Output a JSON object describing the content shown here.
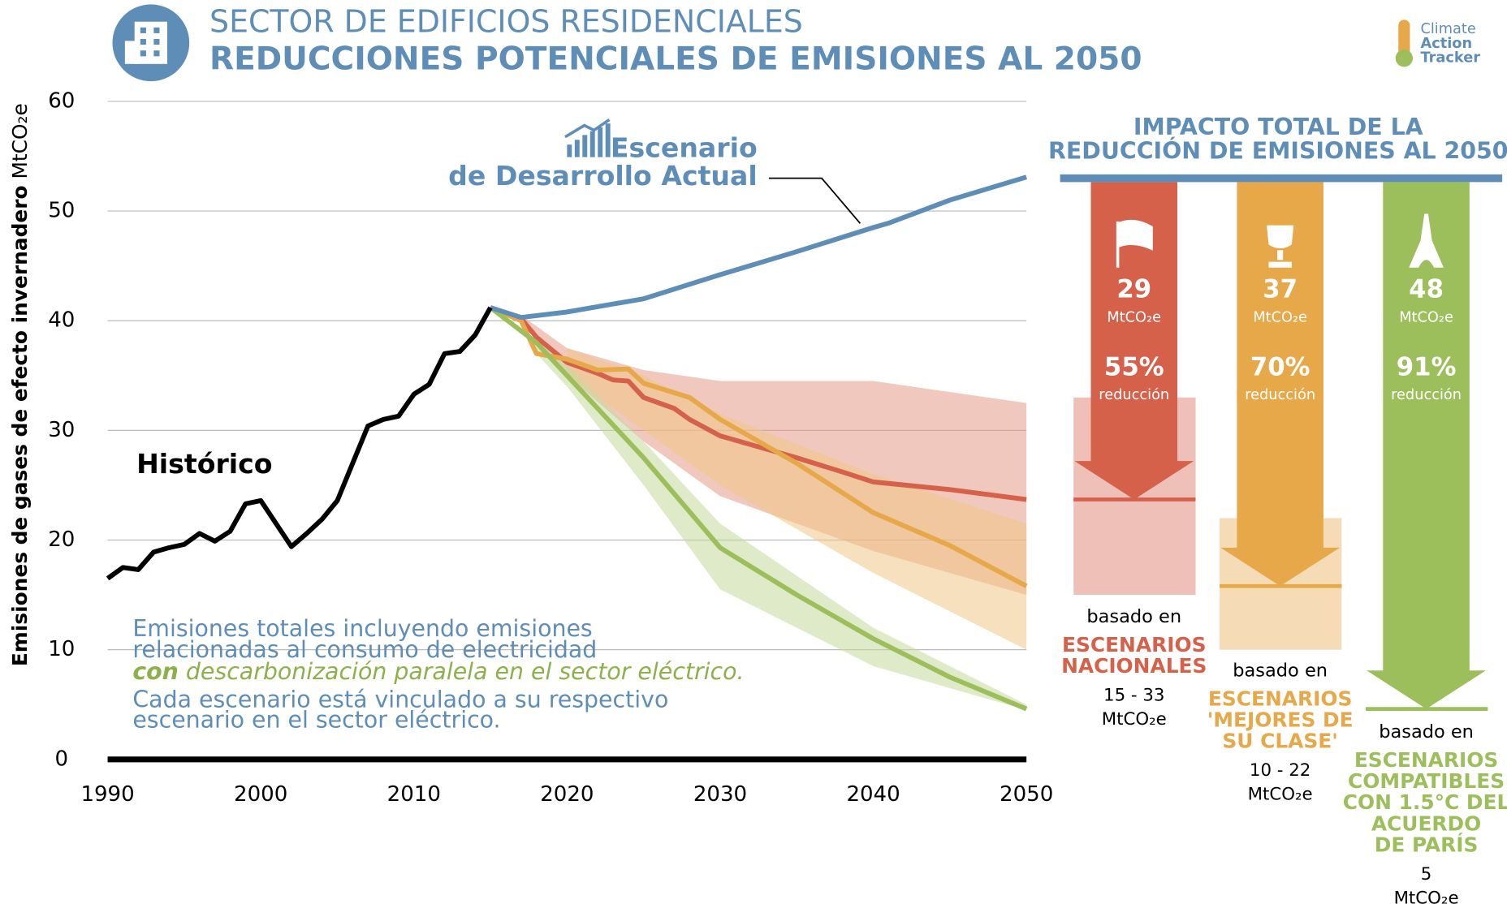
{
  "header": {
    "title": "SECTOR DE EDIFICIOS RESIDENCIALES",
    "subtitle": "REDUCCIONES POTENCIALES DE EMISIONES AL 2050",
    "logo": [
      "Climate",
      "Action",
      "Tracker"
    ]
  },
  "chart_data": {
    "type": "line",
    "ylabel": "Emisiones de gases de efecto invernadero",
    "ylabel_unit": "MtCO₂e",
    "xlim": [
      1990,
      2050
    ],
    "ylim": [
      0,
      60
    ],
    "xticks": [
      1990,
      2000,
      2010,
      2020,
      2030,
      2040,
      2050
    ],
    "yticks": [
      0,
      10,
      20,
      30,
      40,
      50,
      60
    ],
    "grid": true,
    "series": [
      {
        "name": "Histórico",
        "color": "#000000",
        "x": [
          1990,
          1991,
          1992,
          1993,
          1994,
          1995,
          1996,
          1997,
          1998,
          1999,
          2000,
          2001,
          2002,
          2003,
          2004,
          2005,
          2006,
          2007,
          2008,
          2009,
          2010,
          2011,
          2012,
          2013,
          2014,
          2015
        ],
        "values": [
          16.5,
          17.5,
          17.3,
          18.9,
          19.3,
          19.6,
          20.6,
          19.9,
          20.8,
          23.3,
          23.6,
          21.5,
          19.4,
          20.6,
          21.9,
          23.6,
          27.0,
          30.4,
          31.0,
          31.3,
          33.3,
          34.2,
          37.0,
          37.2,
          38.7,
          41.2
        ]
      },
      {
        "name_lines": [
          "Escenario",
          "de Desarrollo Actual"
        ],
        "color": "#5e8db7",
        "x": [
          2015,
          2017,
          2020,
          2025,
          2030,
          2035,
          2040,
          2041,
          2045,
          2050
        ],
        "values": [
          41.2,
          40.3,
          40.8,
          42.0,
          44.2,
          46.3,
          48.5,
          48.9,
          51.0,
          53.1
        ]
      },
      {
        "color": "#d5614a",
        "x": [
          2015,
          2017,
          2018,
          2020,
          2022,
          2023,
          2024,
          2025,
          2027,
          2028,
          2030,
          2035,
          2038,
          2040,
          2045,
          2050
        ],
        "values": [
          41.2,
          40.2,
          38.5,
          36.2,
          35.2,
          34.6,
          34.5,
          33.0,
          32.0,
          31.0,
          29.5,
          27.5,
          26.2,
          25.3,
          24.6,
          23.7
        ]
      },
      {
        "color": "#e6a849",
        "x": [
          2015,
          2017,
          2018,
          2020,
          2022,
          2024,
          2025,
          2028,
          2030,
          2035,
          2040,
          2045,
          2050
        ],
        "values": [
          41.2,
          40.0,
          37.0,
          36.5,
          35.5,
          35.6,
          34.3,
          33.0,
          31.0,
          27.0,
          22.5,
          19.5,
          15.8
        ]
      },
      {
        "color": "#9dbf5b",
        "x": [
          2015,
          2018,
          2020,
          2025,
          2030,
          2035,
          2040,
          2045,
          2050
        ],
        "values": [
          41.2,
          38.0,
          35.0,
          27.5,
          19.3,
          15.0,
          11.0,
          7.5,
          4.6
        ]
      }
    ],
    "bands": [
      {
        "color": "#e59a87",
        "x": [
          2017,
          2020,
          2025,
          2030,
          2040,
          2050
        ],
        "low": [
          40,
          35,
          29,
          24,
          19,
          15
        ],
        "high": [
          40.5,
          37.5,
          35.5,
          34.5,
          34.5,
          32.5
        ]
      },
      {
        "color": "#efc686",
        "x": [
          2020,
          2025,
          2030,
          2040,
          2050
        ],
        "low": [
          35,
          30,
          25,
          17,
          10
        ],
        "high": [
          37.5,
          35,
          31.5,
          26,
          21.5
        ]
      },
      {
        "color": "#c5db9b",
        "x": [
          2018,
          2020,
          2025,
          2030,
          2040,
          2050
        ],
        "low": [
          37,
          34,
          25,
          15.5,
          8.5,
          4.5
        ],
        "high": [
          38,
          36,
          29,
          21.5,
          12,
          5
        ]
      }
    ],
    "notes": [
      [
        "Emisiones totales incluyendo emisiones"
      ],
      [
        "relacionadas al consumo de electricidad"
      ],
      [
        "con",
        " descarbonización paralela en el sector eléctrico."
      ],
      [
        "Cada escenario está vinculado a su respectivo"
      ],
      [
        "escenario en el sector eléctrico."
      ]
    ]
  },
  "panel": {
    "title_lines": [
      "IMPACTO TOTAL DE LA",
      "REDUCCIÓN DE EMISIONES AL 2050"
    ],
    "items": [
      {
        "color": "#d5614a",
        "value": 29,
        "unit": "MtCO₂e",
        "percent": "55%",
        "percent_text": "reducción",
        "based_on": "basado en",
        "scenario_lines": [
          "ESCENARIOS",
          "NACIONALES"
        ],
        "range": [
          15,
          33
        ],
        "range_lines": [
          "15 - 33",
          "MtCO₂e"
        ]
      },
      {
        "color": "#e6a849",
        "value": 37,
        "unit": "MtCO₂e",
        "percent": "70%",
        "percent_text": "reducción",
        "based_on": "basado en",
        "scenario_lines": [
          "ESCENARIOS",
          "'MEJORES DE",
          "SU CLASE'"
        ],
        "range": [
          10,
          22
        ],
        "range_lines": [
          "10 - 22",
          "MtCO₂e"
        ]
      },
      {
        "color": "#9dbf5b",
        "value": 48,
        "unit": "MtCO₂e",
        "percent": "91%",
        "percent_text": "reducción",
        "based_on": "basado en",
        "scenario_lines": [
          "ESCENARIOS",
          "COMPATIBLES",
          "CON 1.5°C DEL",
          "ACUERDO",
          "DE PARÍS"
        ],
        "range_lines": [
          "5",
          "MtCO₂e"
        ]
      }
    ]
  }
}
